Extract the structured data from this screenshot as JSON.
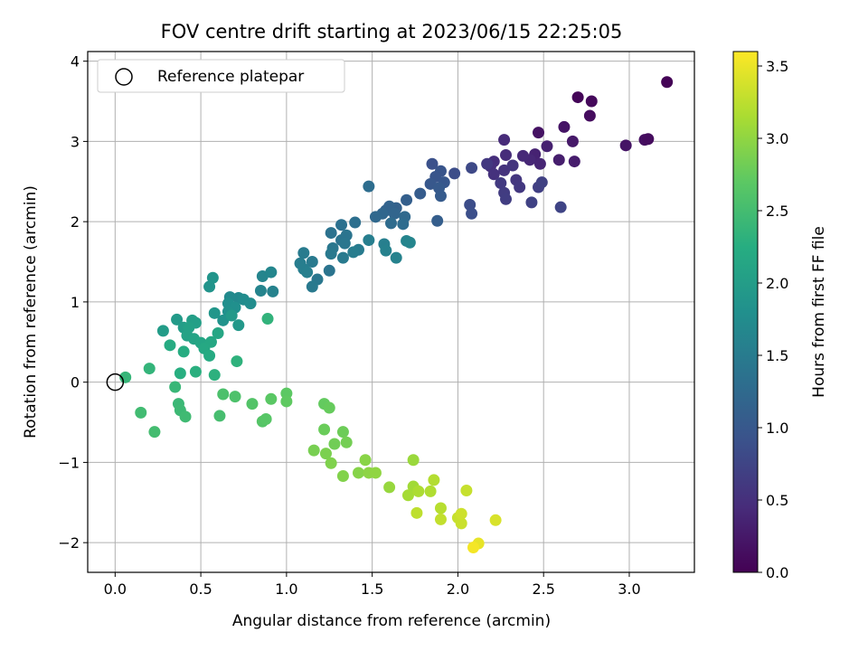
{
  "chart_data": {
    "type": "scatter",
    "title": "FOV centre drift starting at 2023/06/15 22:25:05",
    "xlabel": "Angular distance from reference (arcmin)",
    "ylabel": "Rotation from reference (arcmin)",
    "colorbar_label": "Hours from first FF file",
    "colormap": "viridis",
    "xlim": [
      -0.16,
      3.38
    ],
    "ylim": [
      -2.37,
      4.12
    ],
    "clim": [
      0.0,
      3.6
    ],
    "x_ticks": [
      "0.0",
      "0.5",
      "1.0",
      "1.5",
      "2.0",
      "2.5",
      "3.0"
    ],
    "x_tick_values": [
      0,
      0.5,
      1.0,
      1.5,
      2.0,
      2.5,
      3.0
    ],
    "y_ticks": [
      "−2",
      "−1",
      "0",
      "1",
      "2",
      "3",
      "4"
    ],
    "y_tick_values": [
      -2,
      -1,
      0,
      1,
      2,
      3,
      4
    ],
    "colorbar_ticks": [
      "0.0",
      "0.5",
      "1.0",
      "1.5",
      "2.0",
      "2.5",
      "3.0",
      "3.5"
    ],
    "colorbar_tick_values": [
      0,
      0.5,
      1.0,
      1.5,
      2.0,
      2.5,
      3.0,
      3.5
    ],
    "grid": true,
    "legend": {
      "position": "top-left",
      "label": "Reference platepar"
    },
    "reference_point": [
      0,
      0
    ],
    "points": [
      [
        3.22,
        3.74,
        0.02
      ],
      [
        2.7,
        3.55,
        0.05
      ],
      [
        2.78,
        3.5,
        0.08
      ],
      [
        2.77,
        3.32,
        0.12
      ],
      [
        2.47,
        3.11,
        0.18
      ],
      [
        2.62,
        3.18,
        0.2
      ],
      [
        2.67,
        3.0,
        0.25
      ],
      [
        2.68,
        2.75,
        0.28
      ],
      [
        2.59,
        2.77,
        0.3
      ],
      [
        2.52,
        2.94,
        0.33
      ],
      [
        2.45,
        2.84,
        0.35
      ],
      [
        2.48,
        2.72,
        0.38
      ],
      [
        2.42,
        2.77,
        0.4
      ],
      [
        2.38,
        2.82,
        0.42
      ],
      [
        2.27,
        3.02,
        0.44
      ],
      [
        2.28,
        2.83,
        0.46
      ],
      [
        2.21,
        2.75,
        0.48
      ],
      [
        2.19,
        2.69,
        0.5
      ],
      [
        2.21,
        2.59,
        0.52
      ],
      [
        2.27,
        2.64,
        0.54
      ],
      [
        2.32,
        2.7,
        0.56
      ],
      [
        2.34,
        2.52,
        0.58
      ],
      [
        2.36,
        2.43,
        0.6
      ],
      [
        2.25,
        2.48,
        0.62
      ],
      [
        2.27,
        2.36,
        0.64
      ],
      [
        2.28,
        2.28,
        0.66
      ],
      [
        2.47,
        2.43,
        0.68
      ],
      [
        2.49,
        2.49,
        0.7
      ],
      [
        2.43,
        2.24,
        0.72
      ],
      [
        2.6,
        2.18,
        0.74
      ],
      [
        2.98,
        2.95,
        0.2
      ],
      [
        3.09,
        3.02,
        0.15
      ],
      [
        3.11,
        3.03,
        0.12
      ],
      [
        2.17,
        2.72,
        0.6
      ],
      [
        2.08,
        2.67,
        0.8
      ],
      [
        1.98,
        2.6,
        0.85
      ],
      [
        2.07,
        2.21,
        0.85
      ],
      [
        2.08,
        2.1,
        0.88
      ],
      [
        1.85,
        2.72,
        0.9
      ],
      [
        1.9,
        2.63,
        0.95
      ],
      [
        1.87,
        2.56,
        0.96
      ],
      [
        1.92,
        2.49,
        0.98
      ],
      [
        1.84,
        2.47,
        1.0
      ],
      [
        1.89,
        2.42,
        1.02
      ],
      [
        1.9,
        2.32,
        1.04
      ],
      [
        1.78,
        2.35,
        1.06
      ],
      [
        1.88,
        2.01,
        1.08
      ],
      [
        1.7,
        2.27,
        1.1
      ],
      [
        1.64,
        2.17,
        1.12
      ],
      [
        1.58,
        2.14,
        1.14
      ],
      [
        1.6,
        2.19,
        1.16
      ],
      [
        1.63,
        2.1,
        1.18
      ],
      [
        1.56,
        2.1,
        1.2
      ],
      [
        1.52,
        2.06,
        1.22
      ],
      [
        1.69,
        2.06,
        1.24
      ],
      [
        1.61,
        1.98,
        1.26
      ],
      [
        1.68,
        1.97,
        1.28
      ],
      [
        1.48,
        2.44,
        1.3
      ],
      [
        1.4,
        1.99,
        1.32
      ],
      [
        1.32,
        1.96,
        1.34
      ],
      [
        1.26,
        1.86,
        1.36
      ],
      [
        1.32,
        1.77,
        1.38
      ],
      [
        1.35,
        1.83,
        1.4
      ],
      [
        1.34,
        1.73,
        1.42
      ],
      [
        1.27,
        1.67,
        1.44
      ],
      [
        1.26,
        1.6,
        1.46
      ],
      [
        1.33,
        1.55,
        1.48
      ],
      [
        1.42,
        1.65,
        1.5
      ],
      [
        1.39,
        1.62,
        1.52
      ],
      [
        1.48,
        1.77,
        1.54
      ],
      [
        1.57,
        1.72,
        1.56
      ],
      [
        1.58,
        1.64,
        1.58
      ],
      [
        1.64,
        1.55,
        1.6
      ],
      [
        1.7,
        1.76,
        1.62
      ],
      [
        1.72,
        1.74,
        1.64
      ],
      [
        1.25,
        1.39,
        1.4
      ],
      [
        1.18,
        1.28,
        1.44
      ],
      [
        1.15,
        1.19,
        1.46
      ],
      [
        1.15,
        1.5,
        1.48
      ],
      [
        1.1,
        1.61,
        1.5
      ],
      [
        1.08,
        1.48,
        1.52
      ],
      [
        1.1,
        1.41,
        1.54
      ],
      [
        1.12,
        1.37,
        1.56
      ],
      [
        0.92,
        1.13,
        1.6
      ],
      [
        0.85,
        1.14,
        1.62
      ],
      [
        0.86,
        1.32,
        1.64
      ],
      [
        0.91,
        1.37,
        1.66
      ],
      [
        0.72,
        1.05,
        1.7
      ],
      [
        0.67,
        1.06,
        1.72
      ],
      [
        0.75,
        1.03,
        1.74
      ],
      [
        0.79,
        0.98,
        1.76
      ],
      [
        0.66,
        0.98,
        1.78
      ],
      [
        0.7,
        0.93,
        1.8
      ],
      [
        0.66,
        0.88,
        1.82
      ],
      [
        0.63,
        0.77,
        1.84
      ],
      [
        0.55,
        1.19,
        1.86
      ],
      [
        0.57,
        1.3,
        1.88
      ],
      [
        0.58,
        0.86,
        1.9
      ],
      [
        0.72,
        0.71,
        1.92
      ],
      [
        0.68,
        0.83,
        1.94
      ],
      [
        0.36,
        0.78,
        1.96
      ],
      [
        0.28,
        0.64,
        1.98
      ],
      [
        0.4,
        0.68,
        2.0
      ],
      [
        0.45,
        0.77,
        2.02
      ],
      [
        0.47,
        0.74,
        2.04
      ],
      [
        0.43,
        0.68,
        2.06
      ],
      [
        0.42,
        0.58,
        2.08
      ],
      [
        0.46,
        0.54,
        2.1
      ],
      [
        0.5,
        0.49,
        2.12
      ],
      [
        0.6,
        0.61,
        2.14
      ],
      [
        0.56,
        0.5,
        2.16
      ],
      [
        0.52,
        0.42,
        2.18
      ],
      [
        0.55,
        0.33,
        2.2
      ],
      [
        0.32,
        0.46,
        2.22
      ],
      [
        0.4,
        0.38,
        2.24
      ],
      [
        0.38,
        0.11,
        2.26
      ],
      [
        0.47,
        0.13,
        2.28
      ],
      [
        0.58,
        0.09,
        2.3
      ],
      [
        0.71,
        0.26,
        2.32
      ],
      [
        0.89,
        0.79,
        2.34
      ],
      [
        0.2,
        0.17,
        2.36
      ],
      [
        0.06,
        0.06,
        2.38
      ],
      [
        0.35,
        -0.06,
        2.4
      ],
      [
        0.37,
        -0.27,
        2.42
      ],
      [
        0.38,
        -0.35,
        2.44
      ],
      [
        0.41,
        -0.43,
        2.46
      ],
      [
        0.15,
        -0.38,
        2.48
      ],
      [
        0.23,
        -0.62,
        2.5
      ],
      [
        0.61,
        -0.42,
        2.52
      ],
      [
        0.63,
        -0.15,
        2.56
      ],
      [
        0.7,
        -0.18,
        2.58
      ],
      [
        0.8,
        -0.27,
        2.62
      ],
      [
        0.86,
        -0.49,
        2.64
      ],
      [
        0.88,
        -0.46,
        2.66
      ],
      [
        0.91,
        -0.21,
        2.68
      ],
      [
        1.0,
        -0.14,
        2.7
      ],
      [
        1.0,
        -0.24,
        2.72
      ],
      [
        1.22,
        -0.27,
        2.74
      ],
      [
        1.25,
        -0.32,
        2.76
      ],
      [
        1.22,
        -0.59,
        2.78
      ],
      [
        1.33,
        -0.62,
        2.8
      ],
      [
        1.28,
        -0.77,
        2.82
      ],
      [
        1.35,
        -0.75,
        2.84
      ],
      [
        1.16,
        -0.85,
        2.86
      ],
      [
        1.23,
        -0.89,
        2.88
      ],
      [
        1.26,
        -1.01,
        2.9
      ],
      [
        1.33,
        -1.17,
        2.92
      ],
      [
        1.42,
        -1.13,
        2.94
      ],
      [
        1.46,
        -0.97,
        2.96
      ],
      [
        1.48,
        -1.13,
        2.98
      ],
      [
        1.52,
        -1.13,
        3.0
      ],
      [
        1.6,
        -1.31,
        3.04
      ],
      [
        1.74,
        -0.97,
        3.06
      ],
      [
        1.74,
        -1.3,
        3.1
      ],
      [
        1.71,
        -1.41,
        3.12
      ],
      [
        1.77,
        -1.36,
        3.16
      ],
      [
        1.84,
        -1.36,
        3.18
      ],
      [
        1.86,
        -1.22,
        3.2
      ],
      [
        1.9,
        -1.57,
        3.22
      ],
      [
        1.76,
        -1.63,
        3.26
      ],
      [
        1.9,
        -1.71,
        3.28
      ],
      [
        2.0,
        -1.69,
        3.3
      ],
      [
        2.02,
        -1.76,
        3.32
      ],
      [
        2.02,
        -1.64,
        3.34
      ],
      [
        2.05,
        -1.35,
        3.3
      ],
      [
        2.22,
        -1.72,
        3.4
      ],
      [
        2.12,
        -2.01,
        3.48
      ],
      [
        2.09,
        -2.06,
        3.55
      ]
    ]
  }
}
